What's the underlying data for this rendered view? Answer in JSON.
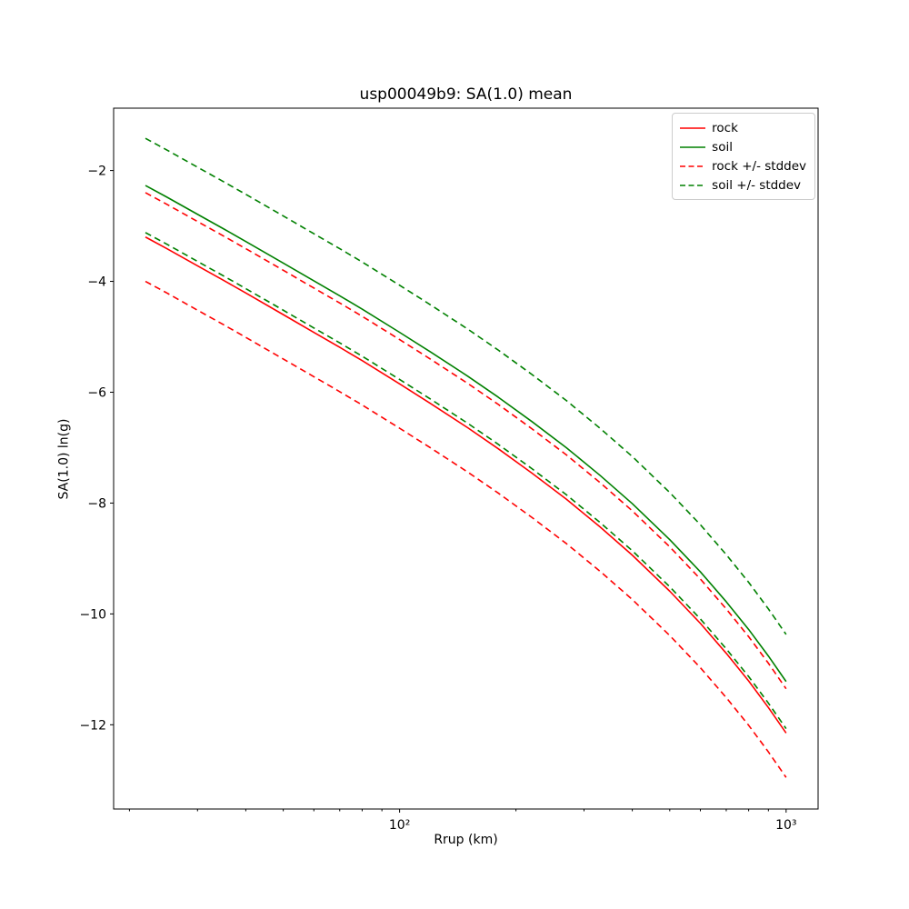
{
  "chart_data": {
    "type": "line",
    "title": "usp00049b9: SA(1.0) mean",
    "xlabel": "Rrup (km)",
    "ylabel": "SA(1.0) ln(g)",
    "x_axis_scale": "log",
    "xlim": [
      18.2,
      1210
    ],
    "ylim": [
      -13.52,
      -0.875
    ],
    "x_ticks": [
      100,
      1000
    ],
    "x_tick_labels": [
      "10²",
      "10³"
    ],
    "y_ticks": [
      -2,
      -4,
      -6,
      -8,
      -10,
      -12
    ],
    "y_tick_labels": [
      "−2",
      "−4",
      "−6",
      "−8",
      "−10",
      "−12"
    ],
    "grid": false,
    "legend_position": "upper right",
    "x": [
      22,
      25,
      30,
      35,
      40,
      50,
      60,
      70,
      80,
      100,
      120,
      150,
      180,
      220,
      270,
      330,
      400,
      500,
      600,
      700,
      800,
      900,
      1000
    ],
    "series": [
      {
        "name": "rock",
        "legend": "rock",
        "color": "#ff0000",
        "style": "solid",
        "stddev": 0.8,
        "values": [
          -3.2,
          -3.41,
          -3.72,
          -3.98,
          -4.21,
          -4.6,
          -4.92,
          -5.19,
          -5.43,
          -5.85,
          -6.2,
          -6.64,
          -7.02,
          -7.46,
          -7.93,
          -8.43,
          -8.94,
          -9.59,
          -10.17,
          -10.71,
          -11.21,
          -11.69,
          -12.15
        ]
      },
      {
        "name": "soil",
        "legend": "soil",
        "color": "#008000",
        "style": "solid",
        "stddev": 0.85,
        "values": [
          -2.27,
          -2.48,
          -2.79,
          -3.05,
          -3.28,
          -3.67,
          -3.99,
          -4.26,
          -4.5,
          -4.92,
          -5.27,
          -5.71,
          -6.09,
          -6.53,
          -7.0,
          -7.5,
          -8.01,
          -8.66,
          -9.24,
          -9.78,
          -10.28,
          -10.76,
          -11.22
        ]
      }
    ],
    "legend_entries": [
      {
        "label": "rock",
        "color": "#ff0000",
        "style": "solid"
      },
      {
        "label": "soil",
        "color": "#008000",
        "style": "solid"
      },
      {
        "label": "rock +/- stddev",
        "color": "#ff0000",
        "style": "dashed"
      },
      {
        "label": "soil +/- stddev",
        "color": "#008000",
        "style": "dashed"
      }
    ]
  }
}
